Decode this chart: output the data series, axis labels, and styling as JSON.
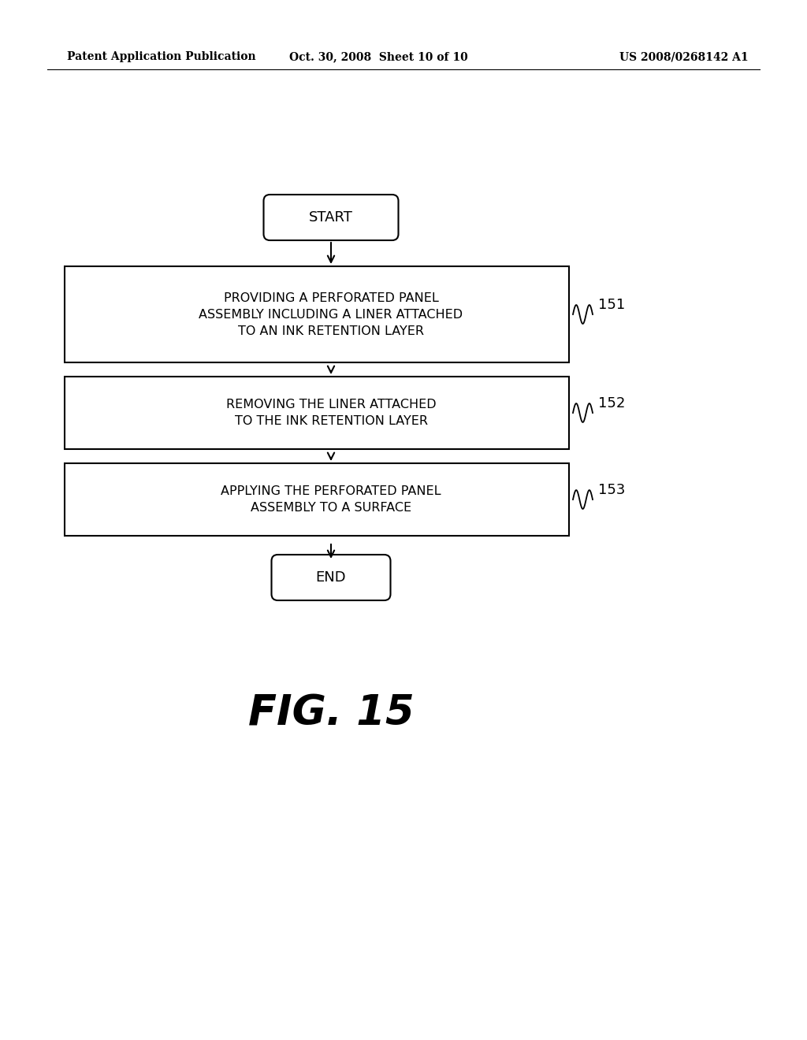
{
  "bg_color": "#ffffff",
  "header_left": "Patent Application Publication",
  "header_mid": "Oct. 30, 2008  Sheet 10 of 10",
  "header_right": "US 2008/0268142 A1",
  "fig_label": "FIG. 15",
  "start_label": "START",
  "end_label": "END",
  "box1_text": "PROVIDING A PERFORATED PANEL\nASSEMBLY INCLUDING A LINER ATTACHED\nTO AN INK RETENTION LAYER",
  "box2_text": "REMOVING THE LINER ATTACHED\nTO THE INK RETENTION LAYER",
  "box3_text": "APPLYING THE PERFORATED PANEL\nASSEMBLY TO A SURFACE",
  "box1_label": "151",
  "box2_label": "152",
  "box3_label": "153",
  "text_color": "#000000",
  "box_edge_color": "#000000",
  "arrow_color": "#000000"
}
